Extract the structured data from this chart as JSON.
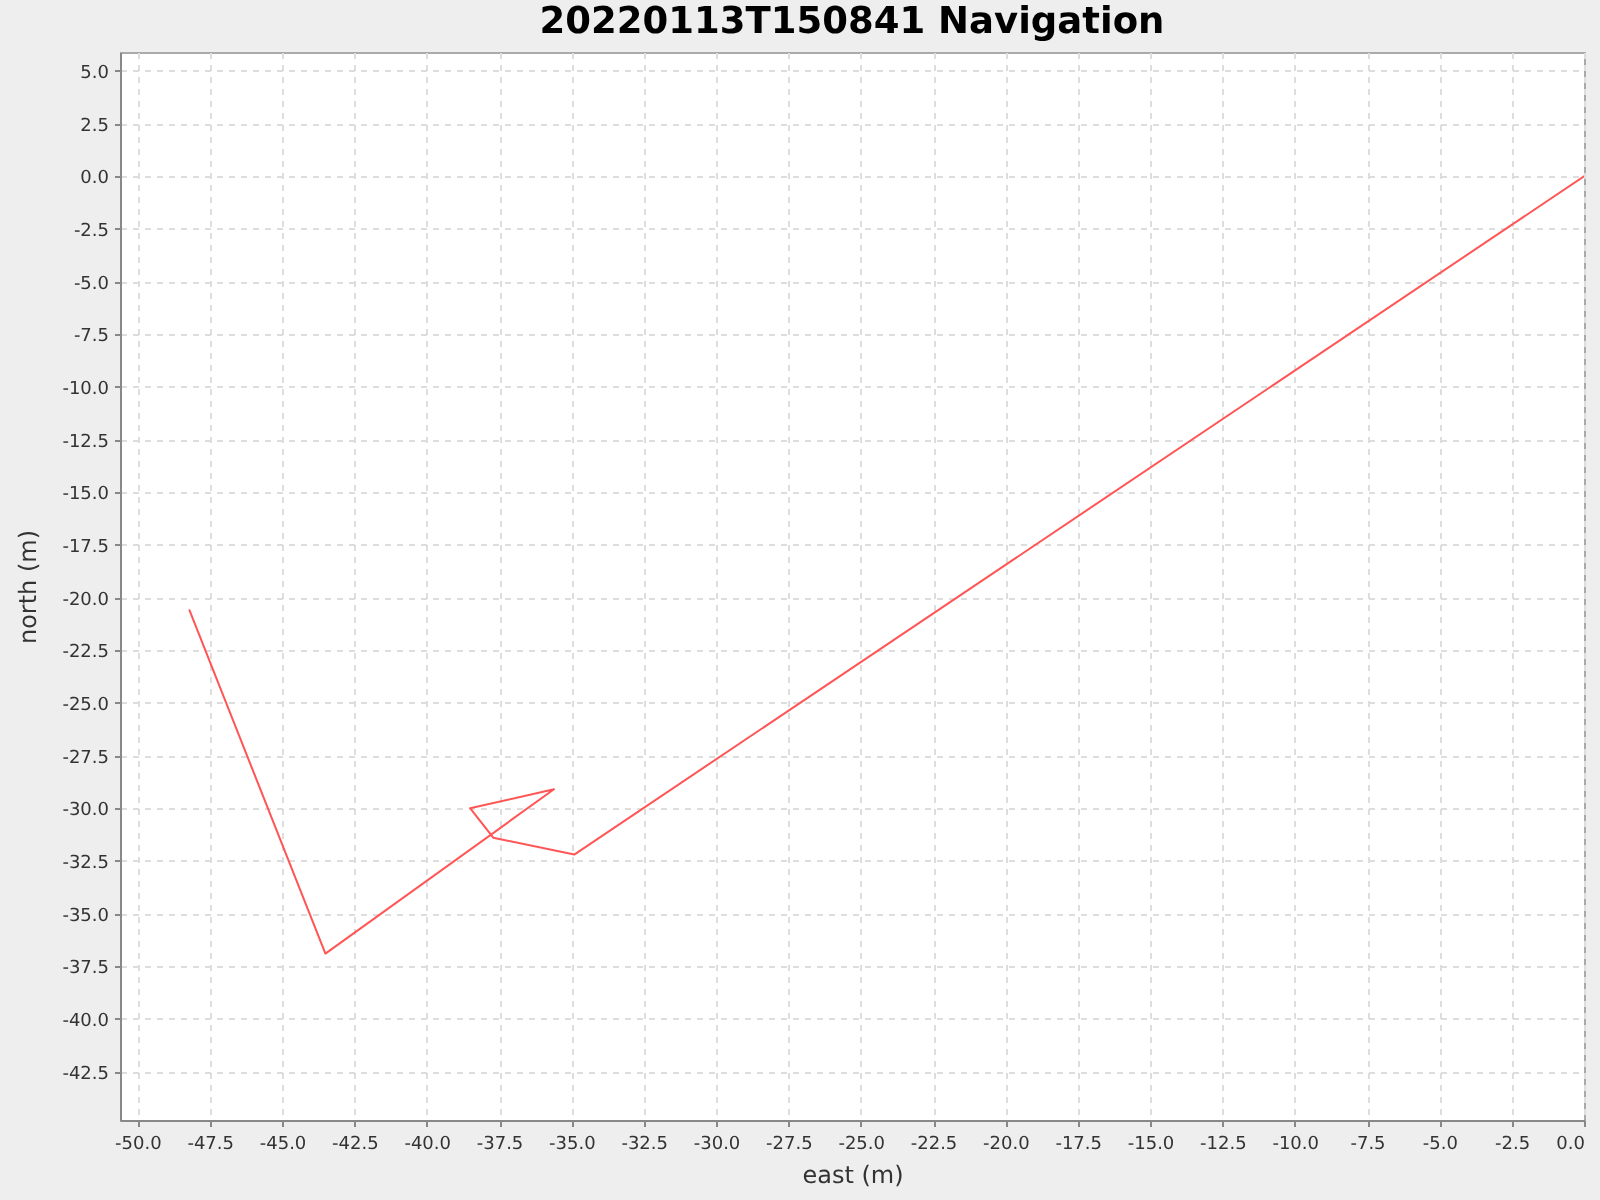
{
  "chart_data": {
    "type": "line",
    "title": "20220113T150841 Navigation",
    "xlabel": "east (m)",
    "ylabel": "north (m)",
    "x": [
      -48.2,
      -43.5,
      -35.6,
      -38.5,
      -37.7,
      -34.9,
      0.0
    ],
    "series": [
      {
        "color": "#ff5555",
        "values": [
          -20.6,
          -36.9,
          -29.1,
          -30.0,
          -31.4,
          -32.2,
          0.0
        ]
      }
    ],
    "xlim": [
      -50.6,
      0.0
    ],
    "ylim": [
      -44.8,
      5.9
    ],
    "xticks": [
      {
        "value": -50,
        "label": "-50.0"
      },
      -47.5,
      {
        "value": -45,
        "label": "-45.0"
      },
      -42.5,
      {
        "value": -40,
        "label": "-40.0"
      },
      -37.5,
      {
        "value": -35,
        "label": "-35.0"
      },
      -32.5,
      {
        "value": -30,
        "label": "-30.0"
      },
      -27.5,
      {
        "value": -25,
        "label": "-25.0"
      },
      -22.5,
      {
        "value": -20,
        "label": "-20.0"
      },
      -17.5,
      {
        "value": -15,
        "label": "-15.0"
      },
      -12.5,
      {
        "value": -10,
        "label": "-10.0"
      },
      -7.5,
      {
        "value": -5,
        "label": "-5.0"
      },
      -2.5,
      {
        "value": 0,
        "label": "0.0"
      }
    ],
    "yticks": [
      {
        "value": 5,
        "label": "5.0"
      },
      2.5,
      {
        "value": 0,
        "label": "0.0"
      },
      -2.5,
      {
        "value": -5,
        "label": "-5.0"
      },
      -7.5,
      {
        "value": -10,
        "label": "-10.0"
      },
      -12.5,
      {
        "value": -15,
        "label": "-15.0"
      },
      -17.5,
      {
        "value": -20,
        "label": "-20.0"
      },
      -22.5,
      {
        "value": -25,
        "label": "-25.0"
      },
      -27.5,
      {
        "value": -30,
        "label": "-30.0"
      },
      -32.5,
      {
        "value": -35,
        "label": "-35.0"
      },
      -37.5,
      {
        "value": -40,
        "label": "-40.0"
      },
      -42.5
    ],
    "grid": true,
    "marker": "none",
    "line_style": "solid"
  }
}
